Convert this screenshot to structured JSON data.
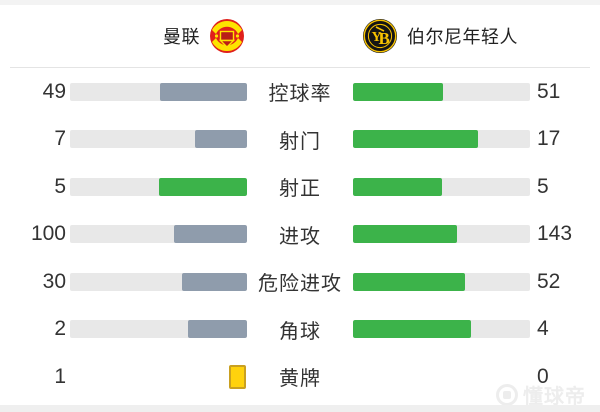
{
  "header": {
    "home_team": {
      "name": "曼联",
      "logo": "manchester-united-crest"
    },
    "away_team": {
      "name": "伯尔尼年轻人",
      "logo": "young-boys-crest"
    }
  },
  "colors": {
    "green": "#3cb34a",
    "gray": "#8f9cac",
    "track": "#e8e8e8",
    "card_yellow": "#ffd20d",
    "text": "#333333"
  },
  "chart_data": {
    "type": "bar",
    "title": "",
    "categories": [
      "控球率",
      "射门",
      "射正",
      "进攻",
      "危险进攻",
      "角球",
      "黄牌"
    ],
    "series": [
      {
        "name": "曼联",
        "values": [
          49,
          7,
          5,
          100,
          30,
          2,
          1
        ]
      },
      {
        "name": "伯尔尼年轻人",
        "values": [
          51,
          17,
          5,
          143,
          52,
          4,
          0
        ]
      }
    ]
  },
  "stats": {
    "rows": [
      {
        "label": "控球率",
        "home": "49",
        "away": "51",
        "bars": true,
        "home_pct": 49,
        "away_pct": 51,
        "home_color": "gray",
        "away_color": "green",
        "icon": ""
      },
      {
        "label": "射门",
        "home": "7",
        "away": "17",
        "bars": true,
        "home_pct": 29.2,
        "away_pct": 70.8,
        "home_color": "gray",
        "away_color": "green",
        "icon": ""
      },
      {
        "label": "射正",
        "home": "5",
        "away": "5",
        "bars": true,
        "home_pct": 50,
        "away_pct": 50,
        "home_color": "green",
        "away_color": "green",
        "icon": ""
      },
      {
        "label": "进攻",
        "home": "100",
        "away": "143",
        "bars": true,
        "home_pct": 41.2,
        "away_pct": 58.8,
        "home_color": "gray",
        "away_color": "green",
        "icon": ""
      },
      {
        "label": "危险进攻",
        "home": "30",
        "away": "52",
        "bars": true,
        "home_pct": 36.6,
        "away_pct": 63.4,
        "home_color": "gray",
        "away_color": "green",
        "icon": ""
      },
      {
        "label": "角球",
        "home": "2",
        "away": "4",
        "bars": true,
        "home_pct": 33.3,
        "away_pct": 66.7,
        "home_color": "gray",
        "away_color": "green",
        "icon": ""
      },
      {
        "label": "黄牌",
        "home": "1",
        "away": "0",
        "bars": false,
        "home_pct": 0,
        "away_pct": 0,
        "home_color": "gray",
        "away_color": "green",
        "icon": "yellow-card"
      }
    ]
  },
  "watermark": {
    "text": "懂球帝"
  }
}
